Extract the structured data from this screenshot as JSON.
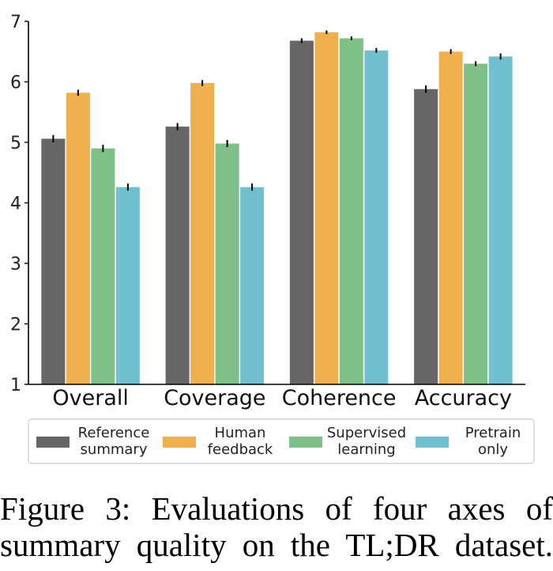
{
  "chart_data": {
    "type": "bar",
    "categories": [
      "Overall",
      "Coverage",
      "Coherence",
      "Accuracy"
    ],
    "series": [
      {
        "name": "Reference summary",
        "label_lines": [
          "Reference",
          "summary"
        ],
        "color": "#666666",
        "values": [
          5.06,
          5.26,
          6.68,
          5.88
        ],
        "errors": [
          0.06,
          0.06,
          0.04,
          0.06
        ]
      },
      {
        "name": "Human feedback",
        "label_lines": [
          "Human",
          "feedback"
        ],
        "color": "#F0B050",
        "values": [
          5.82,
          5.98,
          6.82,
          6.5
        ],
        "errors": [
          0.05,
          0.05,
          0.03,
          0.04
        ]
      },
      {
        "name": "Supervised learning",
        "label_lines": [
          "Supervised",
          "learning"
        ],
        "color": "#7FBF88",
        "values": [
          4.9,
          4.98,
          6.72,
          6.3
        ],
        "errors": [
          0.06,
          0.06,
          0.03,
          0.04
        ]
      },
      {
        "name": "Pretrain only",
        "label_lines": [
          "Pretrain",
          "only"
        ],
        "color": "#70C0D0",
        "values": [
          4.26,
          4.26,
          6.52,
          6.42
        ],
        "errors": [
          0.06,
          0.06,
          0.04,
          0.05
        ]
      }
    ],
    "ylim": [
      1,
      7
    ],
    "yticks": [
      "1",
      "2",
      "3",
      "4",
      "5",
      "6",
      "7"
    ],
    "xlabel": "",
    "ylabel": "",
    "title": "",
    "grid": false,
    "legend_position": "bottom"
  },
  "caption": {
    "line1": "Figure 3: Evaluations of four axes of",
    "line2": "summary quality on the TL;DR dataset."
  }
}
